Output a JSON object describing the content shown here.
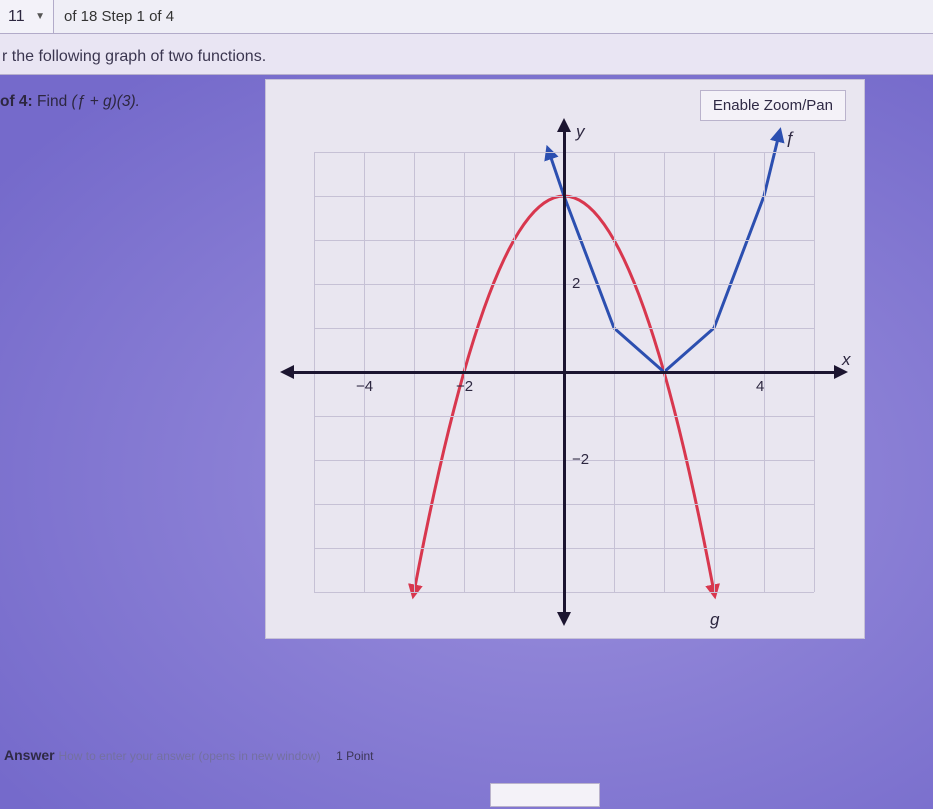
{
  "nav": {
    "current_question": "11",
    "total_questions": "18",
    "step_current": "1",
    "step_total": "4",
    "info_text": "of 18 Step 1 of 4"
  },
  "instruction": "r the following graph of two functions.",
  "step": {
    "prefix": "of 4:",
    "label": "Find",
    "expr": "(ƒ + g)(3)."
  },
  "zoom_button": "Enable Zoom/Pan",
  "axis_labels": {
    "x": "x",
    "y": "y",
    "f": "ƒ",
    "g": "g"
  },
  "ticks": {
    "x": [
      {
        "v": -4,
        "label": "−4"
      },
      {
        "v": -2,
        "label": "−2"
      },
      {
        "v": 4,
        "label": "4"
      }
    ],
    "y": [
      {
        "v": 2,
        "label": "2"
      },
      {
        "v": -2,
        "label": "−2"
      }
    ]
  },
  "plot": {
    "xlim": [
      -5,
      5
    ],
    "ylim": [
      -5,
      5
    ],
    "grid_step": 1,
    "grid_color": "#c6c1d5",
    "axis_color": "#1c1530",
    "background": "#e9e6f0",
    "curves": [
      {
        "name": "g",
        "type": "parabola",
        "vertex": [
          0,
          4
        ],
        "a": -1,
        "color": "#d8374e",
        "width": 3,
        "x_range": [
          -3,
          3
        ],
        "arrow_ends": true
      },
      {
        "name": "f",
        "type": "cubic",
        "color": "#2c4fb0",
        "width": 3,
        "points": [
          [
            -0.3,
            5
          ],
          [
            0,
            4
          ],
          [
            1,
            1
          ],
          [
            2,
            0
          ],
          [
            3,
            1
          ],
          [
            4,
            4
          ],
          [
            4.3,
            5.4
          ]
        ],
        "arrow_ends": true
      }
    ]
  },
  "answer": {
    "label": "Answer",
    "hint": "How to enter your answer (opens in new window)",
    "points": "1 Point",
    "value": ""
  }
}
